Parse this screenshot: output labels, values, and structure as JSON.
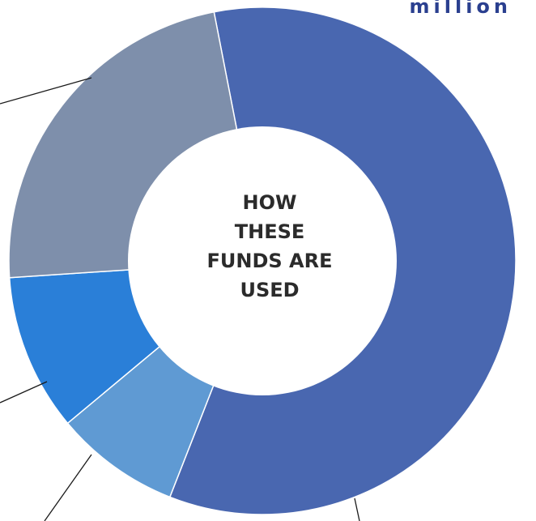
{
  "corner_text": "million",
  "chart_data": {
    "type": "pie",
    "center_label_lines": [
      "HOW",
      "THESE",
      "FUNDS ARE",
      "USED"
    ],
    "slices": [
      {
        "value": 59,
        "color": "#4967b0"
      },
      {
        "value": 8,
        "color": "#5f9ad3"
      },
      {
        "value": 10,
        "color": "#2a7fd8"
      },
      {
        "value": 23,
        "color": "#7e8fab"
      }
    ]
  }
}
